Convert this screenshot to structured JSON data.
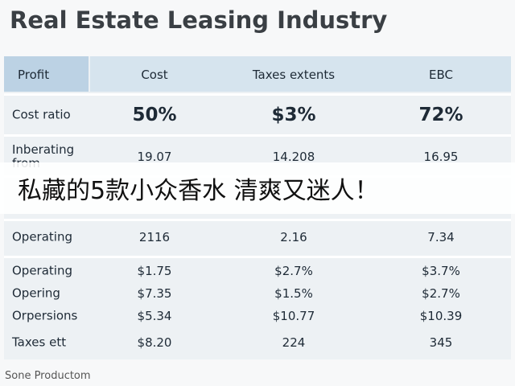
{
  "header": {
    "title": "Real Estate Leasing Industry"
  },
  "table": {
    "columns": [
      "Profit",
      "Cost",
      "Taxes extents",
      "EBC"
    ],
    "rows": [
      [
        "Cost ratio",
        "50%",
        "$3%",
        "72%"
      ],
      [
        "Inberating from",
        "19.07",
        "14.208",
        "16.95"
      ],
      [
        "Operating",
        "2116",
        "2.16",
        "7.34"
      ],
      [
        "Operating",
        "$1.75",
        "$2.7%",
        "$3.7%"
      ],
      [
        "Opering",
        "$7.35",
        "$1.5%",
        "$2.7%"
      ],
      [
        "Orpersions",
        "$5.34",
        "$10.77",
        "$10.39"
      ],
      [
        "Taxes ett",
        "$8.20",
        "224",
        "345"
      ]
    ]
  },
  "footer": "Sone Productom",
  "banner": "私藏的5款小众香水 清爽又迷人！"
}
